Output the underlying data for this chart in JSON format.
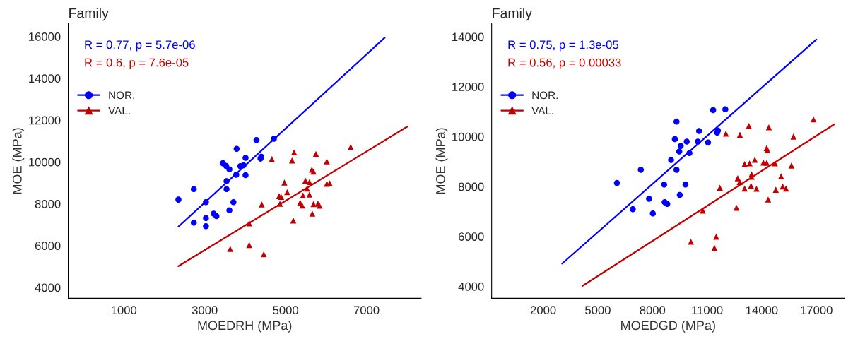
{
  "chart_data": [
    {
      "type": "scatter",
      "title": "Family",
      "xlabel": "MOEDRH (MPa)",
      "ylabel": "MOE (MPa)",
      "annotations": [
        "R = 0.77, p = 5.7e-06",
        "R = 0.6, p = 7.6e-05"
      ],
      "xlim": [
        -375,
        8350
      ],
      "ylim": [
        3480,
        16610
      ],
      "xticks": [
        1000,
        3000,
        5000,
        7000
      ],
      "yticks": [
        4000,
        6000,
        8000,
        10000,
        12000,
        14000,
        16000
      ],
      "grid": false,
      "legend": "top left",
      "series": [
        {
          "name": "NOR.",
          "color": "#0000ff",
          "marker": "circle",
          "x": [
            2350,
            2730,
            2730,
            3030,
            3030,
            3030,
            3220,
            3290,
            3450,
            3530,
            3610,
            3540,
            3540,
            3610,
            3710,
            3780,
            3790,
            3880,
            3960,
            4010,
            4010,
            4280,
            4380,
            4400,
            4710
          ],
          "values": [
            8200,
            8700,
            7100,
            8080,
            7320,
            6930,
            7530,
            7410,
            9940,
            9810,
            9650,
            9080,
            8700,
            7690,
            8080,
            9390,
            10630,
            9800,
            9840,
            10200,
            9370,
            11050,
            10160,
            10250,
            11110
          ]
        },
        {
          "name": "VAL.",
          "color": "#c00000",
          "marker": "triangle",
          "x": [
            4660,
            5210,
            5160,
            5750,
            6020,
            6610,
            5650,
            5690,
            4970,
            5490,
            5590,
            5530,
            6020,
            6090,
            5040,
            4840,
            4890,
            5430,
            5590,
            4860,
            5360,
            5410,
            5690,
            5800,
            5840,
            4410,
            5190,
            5660,
            4100,
            4100,
            3630,
            4460
          ],
          "values": [
            10140,
            10460,
            10070,
            10380,
            10030,
            10710,
            9630,
            9540,
            9020,
            9110,
            9040,
            8730,
            8960,
            8980,
            8560,
            8370,
            8330,
            8400,
            8440,
            8000,
            8050,
            7920,
            7990,
            8010,
            7910,
            7970,
            7200,
            7530,
            7070,
            6030,
            5840,
            5590
          ]
        },
        {
          "type": "line",
          "color": "#0000ff",
          "x": [
            2350,
            7450
          ],
          "values": [
            6910,
            15940
          ]
        },
        {
          "type": "line",
          "color": "#c00000",
          "x": [
            2350,
            8010
          ],
          "values": [
            5020,
            11690
          ]
        }
      ]
    },
    {
      "type": "scatter",
      "title": "Family",
      "xlabel": "MOEDGD (MPa)",
      "ylabel": "MOE (MPa)",
      "annotations": [
        "R = 0.75, p = 1.3e-05",
        "R = 0.56, p = 0.00033"
      ],
      "xlim": [
        -830,
        18540
      ],
      "ylim": [
        3520,
        14520
      ],
      "xticks": [
        2000,
        5000,
        8000,
        11000,
        14000,
        17000
      ],
      "yticks": [
        4000,
        6000,
        8000,
        10000,
        12000,
        14000
      ],
      "grid": false,
      "legend": "top left",
      "series": [
        {
          "name": "NOR.",
          "color": "#0000ff",
          "marker": "circle",
          "x": [
            6050,
            6920,
            7360,
            7810,
            8020,
            8640,
            8670,
            8810,
            9020,
            9230,
            9320,
            9320,
            9470,
            9550,
            9500,
            9810,
            9880,
            10030,
            10490,
            10560,
            11050,
            11330,
            12000,
            11590,
            11550
          ],
          "values": [
            8140,
            7090,
            8670,
            7510,
            6920,
            8080,
            7370,
            7300,
            9060,
            9900,
            10600,
            8670,
            9400,
            9620,
            7660,
            8080,
            9800,
            9340,
            9800,
            10220,
            9760,
            11060,
            11090,
            10240,
            10160
          ]
        },
        {
          "name": "VAL.",
          "color": "#c00000",
          "marker": "triangle",
          "x": [
            12030,
            12800,
            13290,
            14390,
            15740,
            16840,
            14270,
            14300,
            13060,
            13330,
            13620,
            14090,
            14270,
            14720,
            15630,
            13440,
            13440,
            12680,
            12790,
            13060,
            13410,
            13710,
            11700,
            14770,
            15060,
            15150,
            15330,
            14350,
            12610,
            10760,
            10110,
            11500,
            11400
          ],
          "values": [
            10120,
            10070,
            10430,
            10370,
            10000,
            10690,
            9540,
            9460,
            8900,
            8930,
            9070,
            8960,
            8950,
            8930,
            8840,
            8490,
            8390,
            8330,
            8180,
            7920,
            8030,
            7910,
            7950,
            7870,
            8410,
            8000,
            7920,
            7480,
            7150,
            7030,
            5790,
            5990,
            5540
          ]
        },
        {
          "type": "line",
          "color": "#0000ff",
          "x": [
            3040,
            17000
          ],
          "values": [
            4910,
            13890
          ]
        },
        {
          "type": "line",
          "color": "#c00000",
          "x": [
            4160,
            17980
          ],
          "values": [
            4020,
            10490
          ]
        }
      ]
    }
  ]
}
